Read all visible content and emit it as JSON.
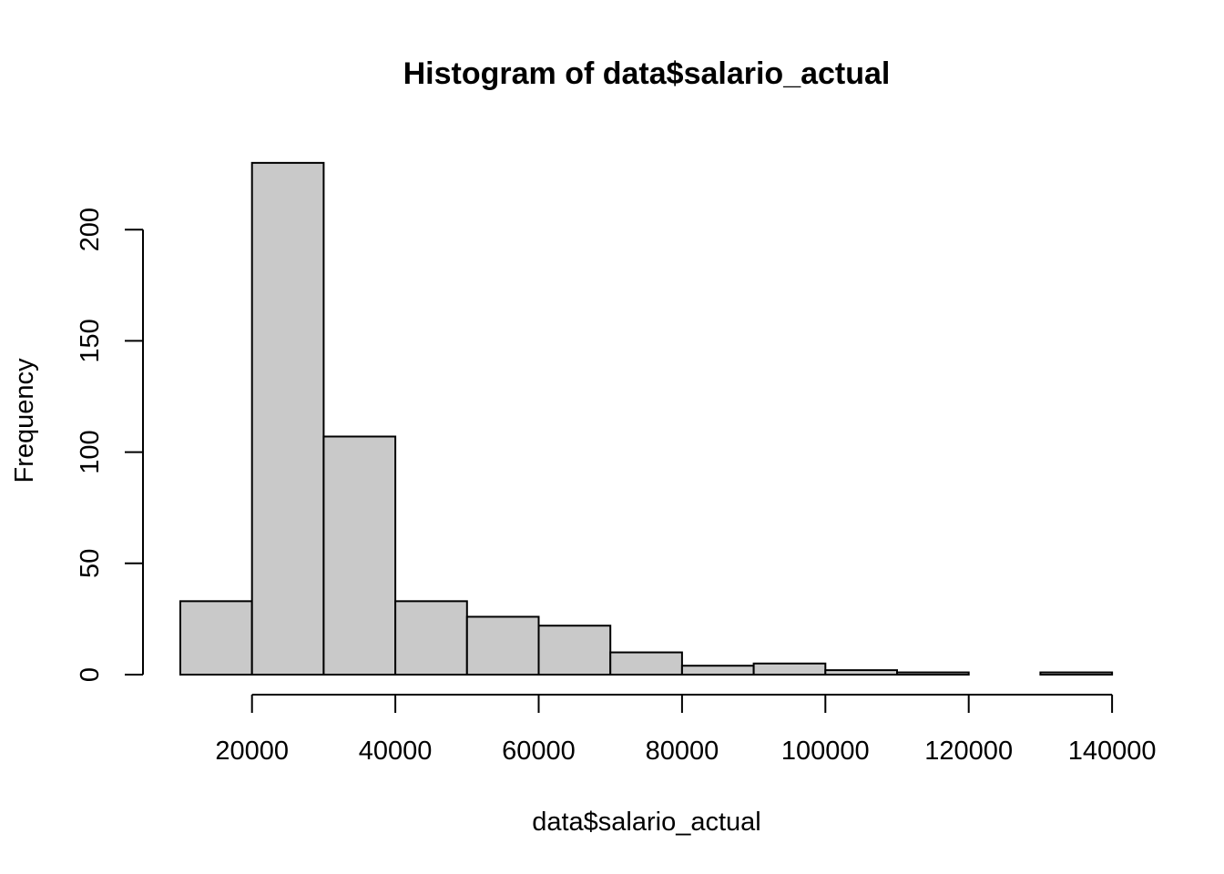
{
  "chart_data": {
    "type": "bar",
    "title": "Histogram of data$salario_actual",
    "xlabel": "data$salario_actual",
    "ylabel": "Frequency",
    "bins": [
      {
        "start": 10000,
        "end": 20000,
        "count": 33
      },
      {
        "start": 20000,
        "end": 30000,
        "count": 230
      },
      {
        "start": 30000,
        "end": 40000,
        "count": 107
      },
      {
        "start": 40000,
        "end": 50000,
        "count": 33
      },
      {
        "start": 50000,
        "end": 60000,
        "count": 26
      },
      {
        "start": 60000,
        "end": 70000,
        "count": 22
      },
      {
        "start": 70000,
        "end": 80000,
        "count": 10
      },
      {
        "start": 80000,
        "end": 90000,
        "count": 4
      },
      {
        "start": 90000,
        "end": 100000,
        "count": 5
      },
      {
        "start": 100000,
        "end": 110000,
        "count": 2
      },
      {
        "start": 110000,
        "end": 120000,
        "count": 1
      },
      {
        "start": 120000,
        "end": 130000,
        "count": 0
      },
      {
        "start": 130000,
        "end": 140000,
        "count": 1
      }
    ],
    "x_ticks": [
      20000,
      40000,
      60000,
      80000,
      100000,
      120000,
      140000
    ],
    "y_ticks": [
      0,
      50,
      100,
      150,
      200
    ],
    "xlim": [
      10000,
      140000
    ],
    "ylim": [
      0,
      230
    ],
    "bar_fill": "#c9c9c9",
    "grid": false
  }
}
